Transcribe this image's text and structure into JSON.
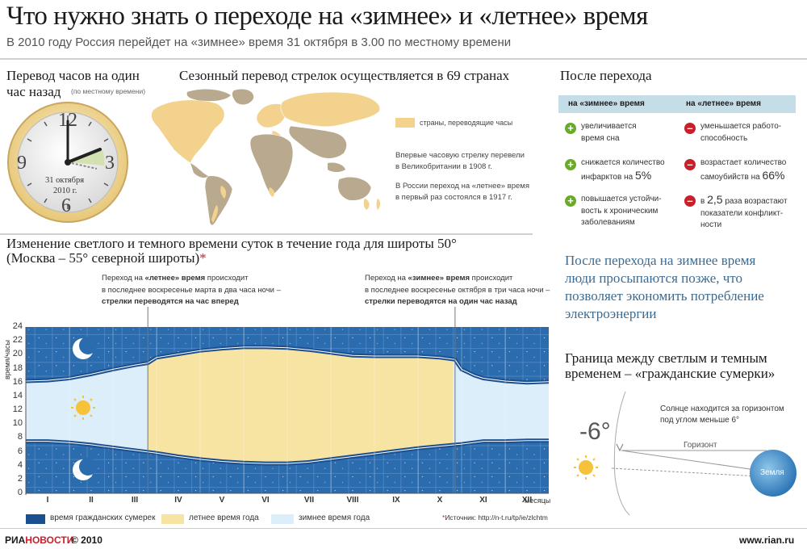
{
  "header": {
    "title": "Что нужно знать о переходе на «зимнее» и «летнее» время",
    "subtitle": "В 2010 году Россия перейдет на «зимнее» время 31 октября в 3.00 по местному времени"
  },
  "clock_section": {
    "heading_line1": "Перевод часов на один",
    "heading_line2": "час назад",
    "note": "(по местному времени)",
    "numeral_12": "12",
    "numeral_3": "3",
    "numeral_6": "6",
    "numeral_9": "9",
    "date_line1": "31 октября",
    "date_line2": "2010 г."
  },
  "map_section": {
    "heading": "Сезонный перевод стрелок осуществляется в 69 странах",
    "legend": "страны, переводящие часы",
    "fact1_line1": "Впервые часовую стрелку перевели",
    "fact1_line2": "в Великобритании в 1908 г.",
    "fact2_line1": "В России переход на «летнее» время",
    "fact2_line2": "в первый раз состоялся в 1917 г."
  },
  "after_section": {
    "heading": "После перехода",
    "col_winter": "на «зимнее» время",
    "col_summer": "на «летнее» время",
    "w1_l1": "увеличивается",
    "w1_l2": "время сна",
    "w2_l1": "снижается количество",
    "w2_l2": "инфарктов на",
    "w2_big": "5%",
    "w3_l1": "повышается устойчи-",
    "w3_l2": "вость к хроническим",
    "w3_l3": "заболеваниям",
    "s1_l1": "уменьшается работо-",
    "s1_l2": "способность",
    "s2_l1": "возрастает количество",
    "s2_l2": "самоубийств на",
    "s2_big": "66%",
    "s3_pre": "в",
    "s3_big": "2,5",
    "s3_l1": "раза возрастают",
    "s3_l2": "показатели конфликт-",
    "s3_l3": "ности"
  },
  "economy_note": {
    "line1": "После перехода на зимнее время",
    "line2": "люди просыпаются позже, что",
    "line3": "позволяет экономить потребление",
    "line4": "электроэнергии"
  },
  "chart_section": {
    "heading_line1": "Изменение светлого и темного времени суток в течение года для широты 50°",
    "heading_line2": "(Москва – 55° северной широты)",
    "asterisk": "*",
    "callout_left_l1_a": "Переход на",
    "callout_left_l1_b": "«летнее» время",
    "callout_left_l1_c": "происходит",
    "callout_left_l2": "в последнее воскресенье марта в два часа ночи –",
    "callout_left_l3": "стрелки переводятся на час вперед",
    "callout_right_l1_a": "Переход на",
    "callout_right_l1_b": "«зимнее» время",
    "callout_right_l1_c": "происходит",
    "callout_right_l2": "в последнее воскресенье октября в три часа ночи –",
    "callout_right_l3": "стрелки переводятся на один час назад",
    "legend_twilight": "время гражданских сумерек",
    "legend_summer": "летнее время года",
    "legend_winter": "зимнее время года",
    "source": "Источник: http://n-t.ru/tp/ie/zlchtm",
    "source_star": "*"
  },
  "chart_data": {
    "type": "area",
    "title": "Изменение светлого и темного времени суток в течение года для широты 50°",
    "xlabel": "месяцы",
    "ylabel": "время/часы",
    "categories": [
      "I",
      "II",
      "III",
      "IV",
      "V",
      "VI",
      "VII",
      "VIII",
      "IX",
      "X",
      "XI",
      "XII"
    ],
    "yticks": [
      "0",
      "2",
      "4",
      "6",
      "8",
      "10",
      "12",
      "14",
      "16",
      "18",
      "20",
      "22",
      "24"
    ],
    "ylim": [
      0,
      24
    ],
    "xlim": [
      0,
      12
    ],
    "dawn_x": [
      0,
      0.5,
      1,
      1.5,
      2,
      2.5,
      3,
      3.5,
      4,
      4.5,
      5,
      5.5,
      6,
      6.5,
      7,
      7.5,
      8,
      8.5,
      9,
      9.5,
      10,
      10.5,
      11,
      11.5,
      12
    ],
    "dawn_y": [
      7.5,
      7.5,
      7.3,
      7.0,
      6.6,
      6.2,
      5.8,
      5.3,
      4.9,
      4.6,
      4.4,
      4.3,
      4.3,
      4.5,
      4.9,
      5.3,
      5.7,
      6.1,
      6.5,
      6.8,
      7.1,
      7.5,
      7.5,
      7.6,
      7.6
    ],
    "dusk_x": [
      0,
      0.5,
      1,
      1.5,
      2,
      2.5,
      2.8,
      3,
      3.5,
      4,
      4.5,
      5,
      5.5,
      6,
      6.5,
      7,
      7.5,
      8,
      8.5,
      9,
      9.5,
      9.85,
      10,
      10.3,
      10.5,
      11,
      11.5,
      12
    ],
    "dusk_y": [
      16.2,
      16.3,
      16.6,
      17.2,
      17.9,
      18.5,
      18.8,
      19.6,
      20.1,
      20.6,
      20.9,
      21.1,
      21.1,
      21.0,
      20.7,
      20.3,
      19.9,
      19.8,
      19.8,
      19.8,
      19.6,
      19.3,
      17.9,
      17.0,
      16.6,
      16.2,
      16.0,
      16.1
    ],
    "summer_time_x_range": [
      2.8,
      9.85
    ],
    "transitions": [
      2.8,
      9.85
    ],
    "legend": [
      "время гражданских сумерек",
      "летнее время года",
      "зимнее время года"
    ]
  },
  "twilight_section": {
    "heading_line1": "Граница между светлым и темным",
    "heading_line2": "временем – «гражданские сумерки»",
    "sun_note_l1": "Солнце находится  за горизонтом",
    "sun_note_l2": "под углом меньше 6°",
    "angle": "-6°",
    "horizon": "Горизонт",
    "earth": "Земля"
  },
  "footer": {
    "logo_ria": "РИА",
    "logo_novosti": "НОВОСТИ",
    "copyright": "© 2010",
    "site": "www.rian.ru"
  },
  "colors": {
    "night": "#2b6cae",
    "day_winter": "#dbeefa",
    "day_summer": "#f7e3a2",
    "twilight_band": "#1c4f8f",
    "map_land": "#b9a98f",
    "map_highlight": "#f2d28c"
  }
}
